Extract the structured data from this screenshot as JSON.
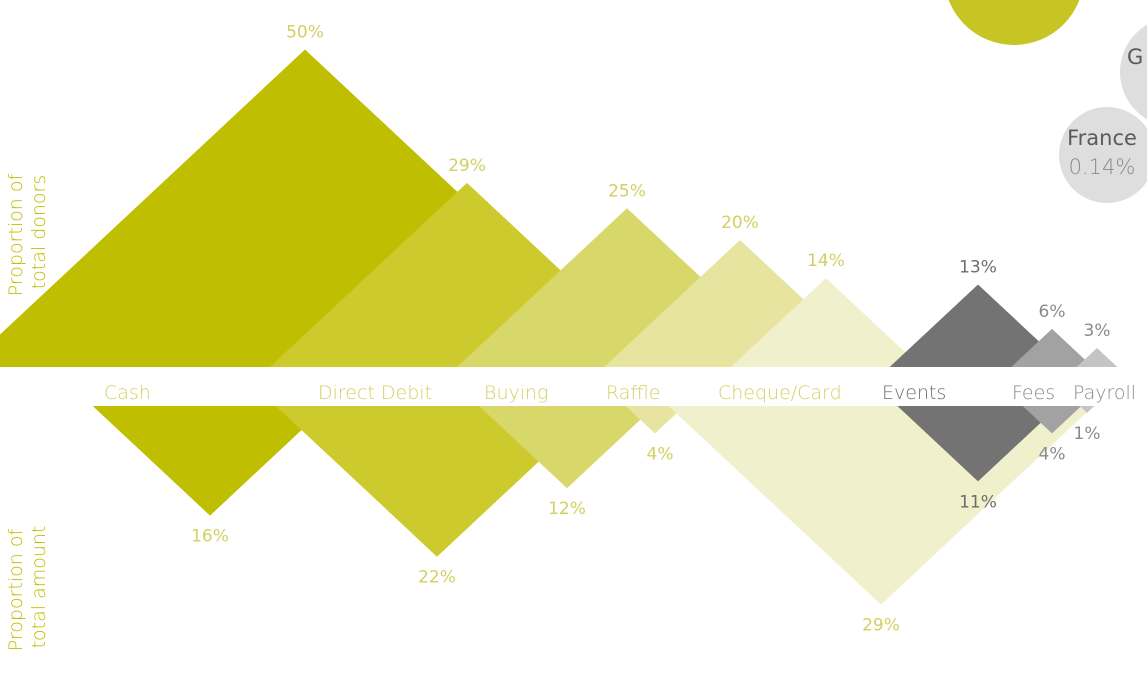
{
  "chart_data": {
    "type": "area",
    "axis_labels": {
      "top": [
        "Proportion of",
        "total donors"
      ],
      "bottom": [
        "Proportion of",
        "total amount"
      ]
    },
    "categories": [
      "Cash",
      "Direct Debit",
      "Buying",
      "Raffle",
      "Cheque/Card",
      "Events",
      "Fees",
      "Payroll"
    ],
    "series": [
      {
        "name": "Proportion of total donors",
        "values": [
          50,
          29,
          25,
          20,
          14,
          13,
          6,
          3
        ],
        "labels": [
          "50%",
          "29%",
          "25%",
          "20%",
          "14%",
          "13%",
          "6%",
          "3%"
        ]
      },
      {
        "name": "Proportion of total amount",
        "values": [
          16,
          22,
          12,
          4,
          29,
          11,
          4,
          1
        ],
        "labels": [
          "16%",
          "22%",
          "12%",
          "4%",
          "29%",
          "11%",
          "4%",
          "1%"
        ]
      }
    ],
    "colors": [
      "#bfbe00",
      "#cdca2e",
      "#d8d86a",
      "#e6e49e",
      "#f1f0cc",
      "#737373",
      "#a2a2a2",
      "#c4c4c4"
    ],
    "label_colors": [
      "#d2d061",
      "#d2d061",
      "#d2d061",
      "#d2d061",
      "#d2d061",
      "#6d6d6d",
      "#8a8a8a",
      "#8a8a8a"
    ],
    "bubble": {
      "name": "France",
      "value": "0.14%",
      "partial_label": "G"
    }
  }
}
